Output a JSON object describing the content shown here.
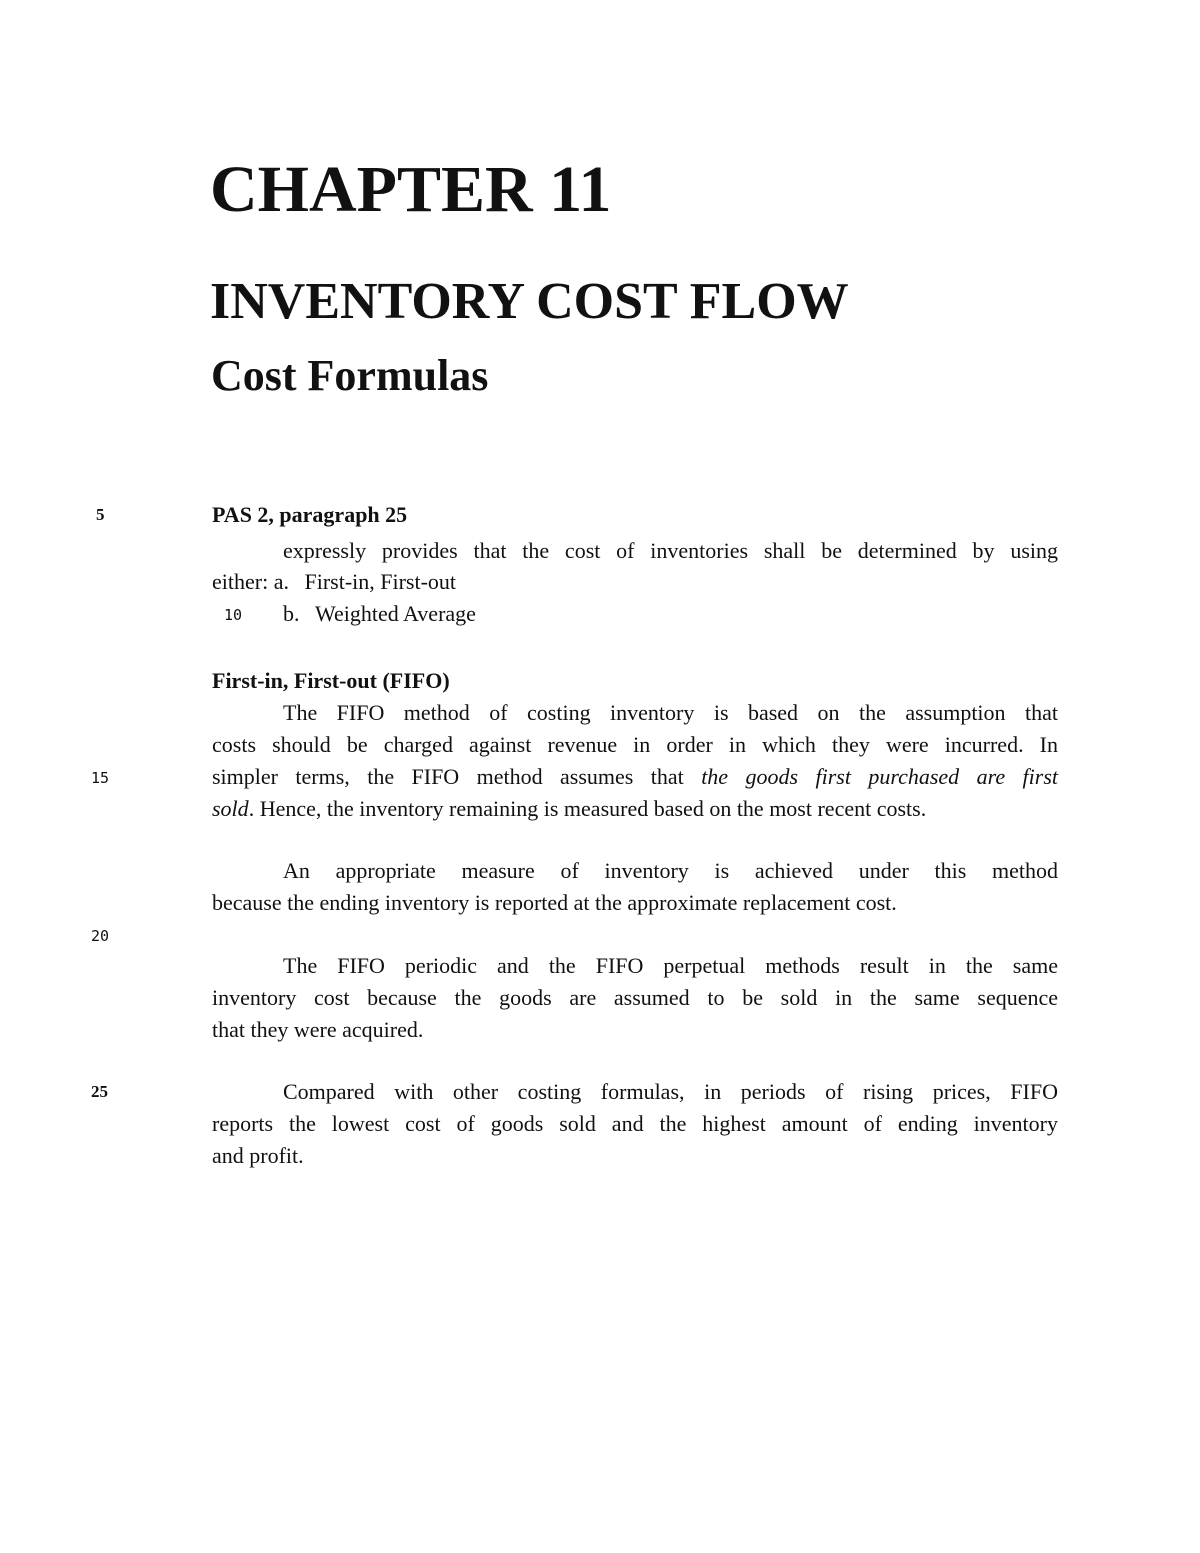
{
  "title": "CHAPTER 11",
  "subtitle": "INVENTORY COST FLOW",
  "section": "Cost Formulas",
  "line_numbers": [
    "5",
    "10",
    "15",
    "20",
    "25"
  ],
  "pas": {
    "heading": "PAS 2, paragraph 25",
    "line1": "expressly provides that the cost of inventories shall be determined by using",
    "either": "either:",
    "item_a_marker": "a.",
    "item_a": "First-in, First-out",
    "item_b_marker": "b.",
    "item_b": "Weighted Average"
  },
  "fifo": {
    "heading": "First-in, First-out (FIFO)",
    "p1": [
      "The FIFO method of costing inventory is based on the assumption that",
      "costs should be charged against revenue in order in which they were incurred. In",
      "simpler terms, the FIFO method assumes that",
      "the goods first purchased are first",
      "sold",
      ". Hence, the inventory remaining is measured based on the most recent costs."
    ],
    "p2": [
      "An appropriate measure of inventory is achieved under this method",
      "because the ending inventory is reported at the approximate replacement cost."
    ],
    "p3": [
      "The FIFO periodic and the FIFO perpetual methods result in the same",
      "inventory cost because the goods are assumed to be sold in the same sequence",
      "that they were acquired."
    ],
    "p4": [
      "Compared with other costing formulas, in periods of rising prices, FIFO",
      "reports the lowest cost of goods sold and the highest amount of ending inventory",
      "and profit."
    ]
  }
}
